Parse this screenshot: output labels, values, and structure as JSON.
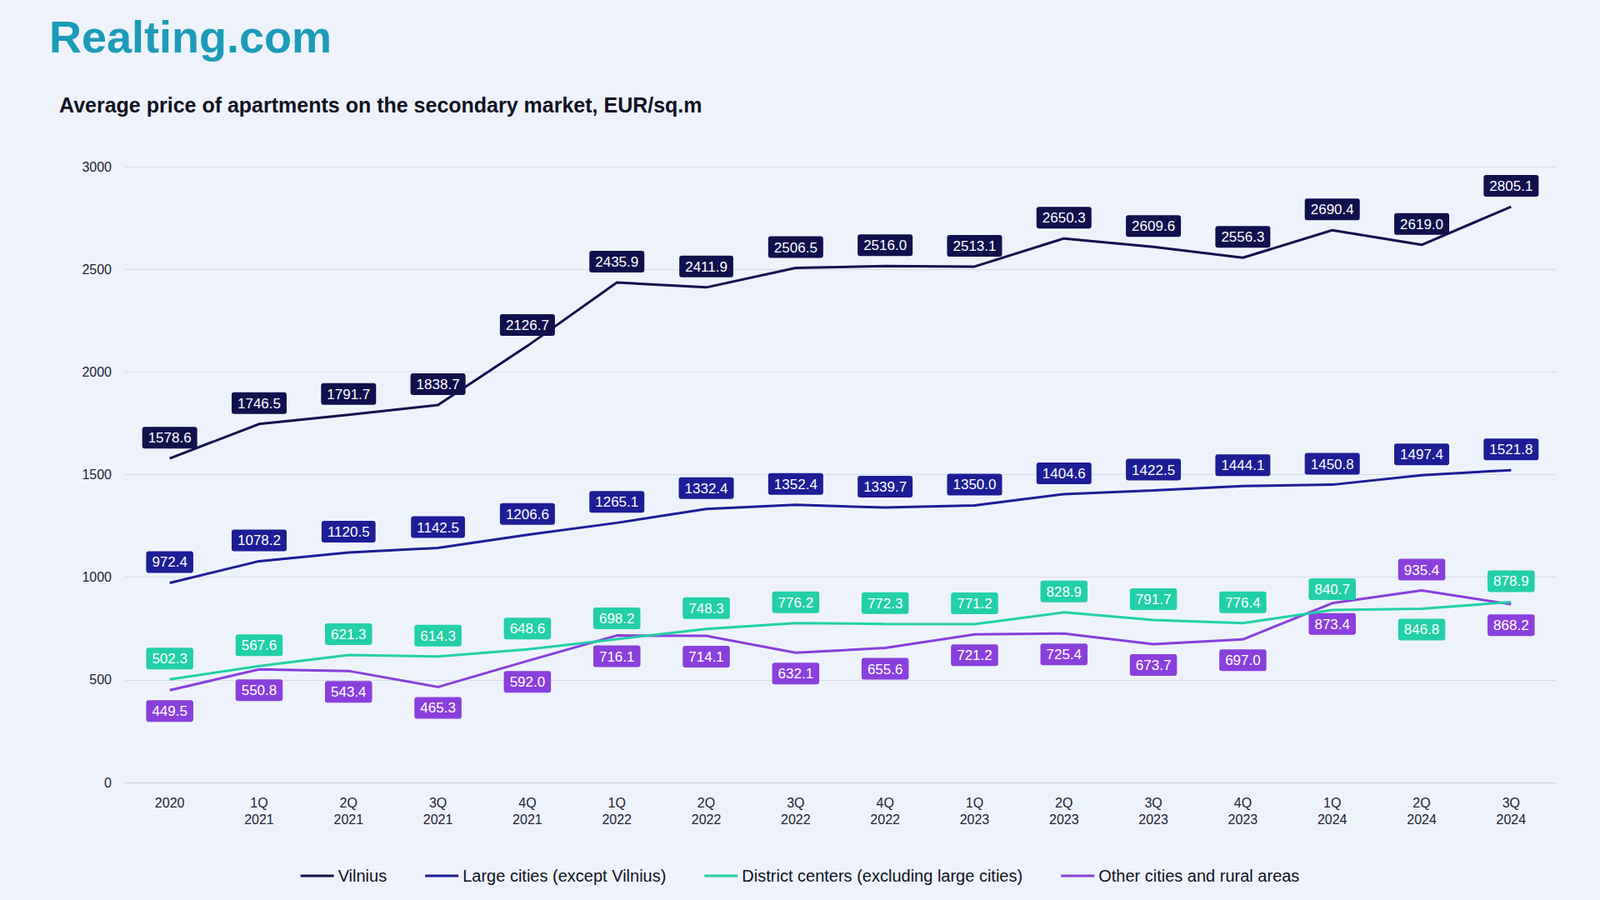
{
  "chart_data": {
    "type": "line",
    "logo": "Realting.com",
    "title": "Average price of apartments on the secondary market, EUR/sq.m",
    "categories": [
      "2020",
      "1Q\n2021",
      "2Q\n2021",
      "3Q\n2021",
      "4Q\n2021",
      "1Q\n2022",
      "2Q\n2022",
      "3Q\n2022",
      "4Q\n2022",
      "1Q\n2023",
      "2Q\n2023",
      "3Q\n2023",
      "4Q\n2023",
      "1Q\n2024",
      "2Q\n2024",
      "3Q\n2024"
    ],
    "series": [
      {
        "name": "Vilnius",
        "color": "#10104d",
        "values": [
          1578.6,
          1746.5,
          1791.7,
          1838.7,
          2126.7,
          2435.9,
          2411.9,
          2506.5,
          2516.0,
          2513.1,
          2650.3,
          2609.6,
          2556.3,
          2690.4,
          2619.0,
          2805.1
        ],
        "value_labels": [
          "1578.6",
          "1746.5",
          "1791.7",
          "1838.7",
          "2126.7",
          "2435.9",
          "2411.9",
          "2506.5",
          "2516.0",
          "2513.1",
          "2650.3",
          "2609.6",
          "2556.3",
          "2690.4",
          "2619.0",
          "2805.1"
        ]
      },
      {
        "name": "Large cities (except Vilnius)",
        "color": "#1d1d96",
        "values": [
          972.4,
          1078.2,
          1120.5,
          1142.5,
          1206.6,
          1265.1,
          1332.4,
          1352.4,
          1339.7,
          1350.0,
          1404.6,
          1422.5,
          1444.1,
          1450.8,
          1497.4,
          1521.8
        ],
        "value_labels": [
          "972.4",
          "1078.2",
          "1120.5",
          "1142.5",
          "1206.6",
          "1265.1",
          "1332.4",
          "1352.4",
          "1339.7",
          "1350.0",
          "1404.6",
          "1422.5",
          "1444.1",
          "1450.8",
          "1497.4",
          "1521.8"
        ]
      },
      {
        "name": "District centers (excluding large cities)",
        "color": "#22cfa8",
        "values": [
          502.3,
          567.6,
          621.3,
          614.3,
          648.6,
          698.2,
          748.3,
          776.2,
          772.3,
          771.2,
          828.9,
          791.7,
          776.4,
          840.7,
          846.8,
          878.9
        ],
        "value_labels": [
          "502.3",
          "567.6",
          "621.3",
          "614.3",
          "648.6",
          "698.2",
          "748.3",
          "776.2",
          "772.3",
          "771.2",
          "828.9",
          "791.7",
          "776.4",
          "840.7",
          "846.8",
          "878.9"
        ]
      },
      {
        "name": "Other cities and rural areas",
        "color": "#8a3fdc",
        "values": [
          449.5,
          550.8,
          543.4,
          465.3,
          592.0,
          716.1,
          714.1,
          632.1,
          655.6,
          721.2,
          725.4,
          673.7,
          697.0,
          873.4,
          935.4,
          868.2
        ],
        "value_labels": [
          "449.5",
          "550.8",
          "543.4",
          "465.3",
          "592.0",
          "716.1",
          "714.1",
          "632.1",
          "655.6",
          "721.2",
          "725.4",
          "673.7",
          "697.0",
          "873.4",
          "935.4",
          "868.2"
        ]
      }
    ],
    "ylim": [
      0,
      3000
    ],
    "yticks": [
      0,
      500,
      1000,
      1500,
      2000,
      2500,
      3000
    ],
    "grid": true,
    "legend": "bottom",
    "data_labels": true
  }
}
